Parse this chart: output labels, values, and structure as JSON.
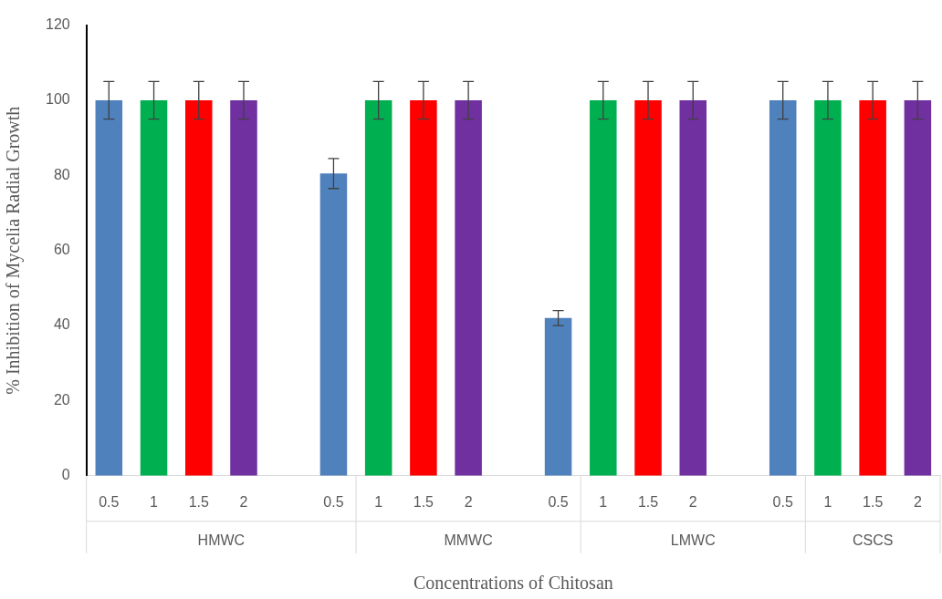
{
  "chart_data": {
    "type": "bar",
    "xlabel": "Concentrations of Chitosan",
    "ylabel": "% Inhibition of Mycelia Radial Growth",
    "categories": [
      "0.5",
      "1",
      "1.5",
      "2",
      null,
      "0.5",
      "1",
      "1.5",
      "2",
      null,
      "0.5",
      "1",
      "1.5",
      "2",
      null,
      "0.5",
      "1",
      "1.5",
      "2"
    ],
    "values": [
      100,
      100,
      100,
      100,
      null,
      80.5,
      100,
      100,
      100,
      null,
      42,
      100,
      100,
      100,
      null,
      100,
      100,
      100,
      100
    ],
    "errors": [
      5,
      5,
      5,
      5,
      null,
      4,
      5,
      5,
      5,
      null,
      2,
      5,
      5,
      5,
      null,
      5,
      5,
      5,
      5
    ],
    "colors": [
      "#4f81bd",
      "#00b050",
      "#ff0000",
      "#7030a0",
      null,
      "#4f81bd",
      "#00b050",
      "#ff0000",
      "#7030a0",
      null,
      "#4f81bd",
      "#00b050",
      "#ff0000",
      "#7030a0",
      null,
      "#4f81bd",
      "#00b050",
      "#ff0000",
      "#7030a0"
    ],
    "annotations": [
      "HMWC",
      "MMWC",
      "LMWC",
      "CSCS"
    ],
    "ylim": [
      0,
      120
    ],
    "yticks": [
      0,
      20,
      40,
      60,
      80,
      100,
      120
    ],
    "grid": false,
    "legend": false
  }
}
